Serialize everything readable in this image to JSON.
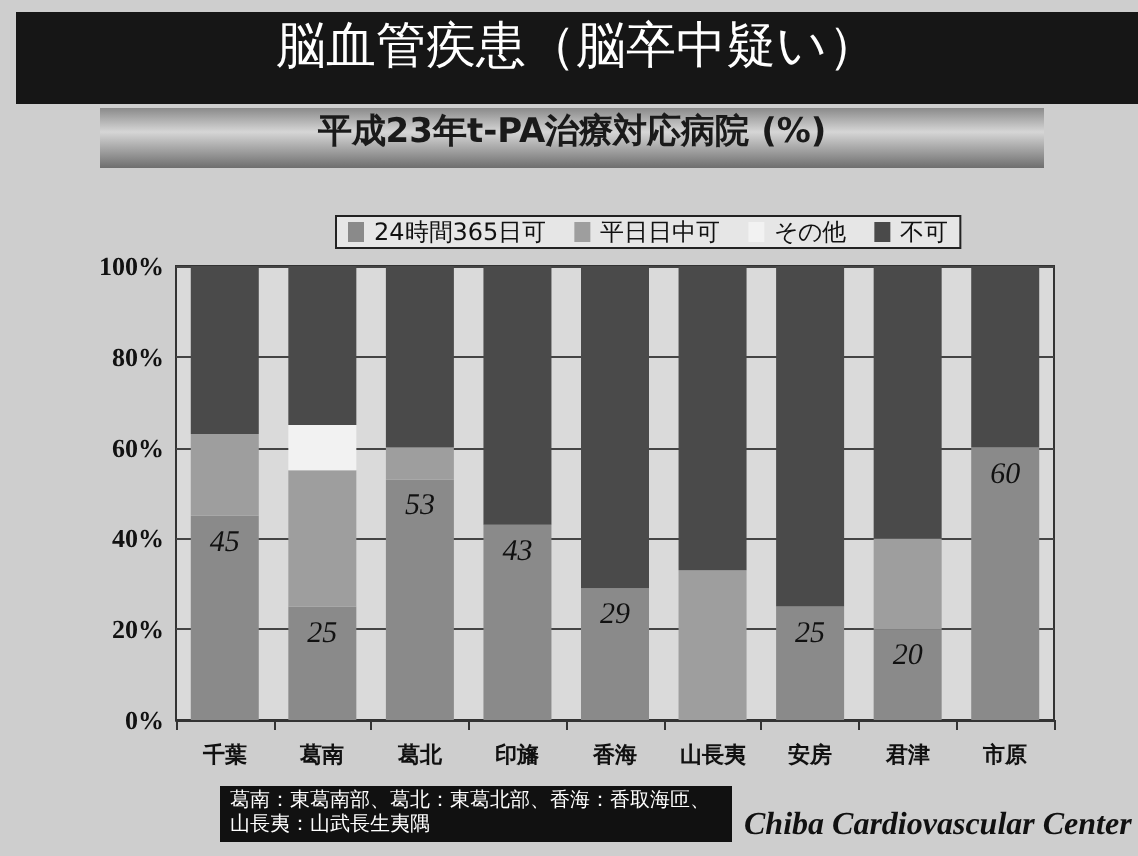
{
  "chart_data": {
    "type": "bar",
    "stacked": true,
    "title": "脳血管疾患（脳卒中疑い）",
    "subtitle": "平成23年t-PA治療対応病院 (%)",
    "categories": [
      "千葉",
      "葛南",
      "葛北",
      "印旛",
      "香海",
      "山長夷",
      "安房",
      "君津",
      "市原"
    ],
    "series": [
      {
        "name": "24時間365日可",
        "color": "#8a8a8a",
        "values": [
          45,
          25,
          53,
          43,
          29,
          0,
          25,
          20,
          60
        ],
        "value_labels": [
          "45",
          "25",
          "53",
          "43",
          "29",
          null,
          "25",
          "20",
          "60"
        ]
      },
      {
        "name": "平日日中可",
        "color": "#9e9e9e",
        "values": [
          18,
          30,
          7,
          0,
          0,
          33,
          0,
          20,
          0
        ]
      },
      {
        "name": "その他",
        "color": "#f2f2f2",
        "values": [
          0,
          10,
          0,
          0,
          0,
          0,
          0,
          0,
          0
        ]
      },
      {
        "name": "不可",
        "color": "#4a4a4a",
        "values": [
          37,
          35,
          40,
          57,
          71,
          67,
          75,
          60,
          40
        ]
      }
    ],
    "ylim": [
      0,
      100
    ],
    "yticks": [
      {
        "value": 0,
        "label": "0%"
      },
      {
        "value": 20,
        "label": "20%"
      },
      {
        "value": 40,
        "label": "40%"
      },
      {
        "value": 60,
        "label": "60%"
      },
      {
        "value": 80,
        "label": "80%"
      },
      {
        "value": 100,
        "label": "100%"
      }
    ],
    "grid": "y",
    "legend": "top",
    "annotations": [
      "葛南：東葛南部、葛北：東葛北部、香海：香取海匝、山長夷：山武長生夷隅",
      "Chiba Cardiovascular Center"
    ]
  }
}
